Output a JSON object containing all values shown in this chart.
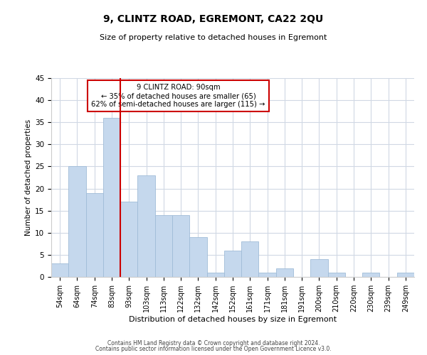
{
  "title": "9, CLINTZ ROAD, EGREMONT, CA22 2QU",
  "subtitle": "Size of property relative to detached houses in Egremont",
  "xlabel": "Distribution of detached houses by size in Egremont",
  "ylabel": "Number of detached properties",
  "bin_labels": [
    "54sqm",
    "64sqm",
    "74sqm",
    "83sqm",
    "93sqm",
    "103sqm",
    "113sqm",
    "122sqm",
    "132sqm",
    "142sqm",
    "152sqm",
    "161sqm",
    "171sqm",
    "181sqm",
    "191sqm",
    "200sqm",
    "210sqm",
    "220sqm",
    "230sqm",
    "239sqm",
    "249sqm"
  ],
  "bar_heights": [
    3,
    25,
    19,
    36,
    17,
    23,
    14,
    14,
    9,
    1,
    6,
    8,
    1,
    2,
    0,
    4,
    1,
    0,
    1,
    0,
    1
  ],
  "bar_color": "#c5d8ed",
  "bar_edge_color": "#a0bcd8",
  "vline_color": "#cc0000",
  "annotation_title": "9 CLINTZ ROAD: 90sqm",
  "annotation_line1": "← 35% of detached houses are smaller (65)",
  "annotation_line2": "62% of semi-detached houses are larger (115) →",
  "annotation_box_color": "#ffffff",
  "annotation_box_edge": "#cc0000",
  "ylim": [
    0,
    45
  ],
  "yticks": [
    0,
    5,
    10,
    15,
    20,
    25,
    30,
    35,
    40,
    45
  ],
  "footer_line1": "Contains HM Land Registry data © Crown copyright and database right 2024.",
  "footer_line2": "Contains public sector information licensed under the Open Government Licence v3.0.",
  "bg_color": "#ffffff",
  "grid_color": "#d0d8e4"
}
